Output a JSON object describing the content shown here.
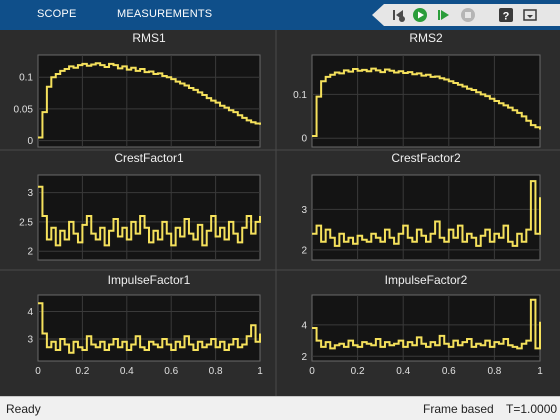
{
  "toolbar": {
    "tabs": [
      "SCOPE",
      "MEASUREMENTS"
    ],
    "icons": [
      "step-back-icon",
      "run-icon",
      "step-forward-icon",
      "stop-icon",
      "help-icon",
      "undock-icon"
    ],
    "colors": {
      "bar": "#0f4f8a",
      "run": "#2a9d3a",
      "help": "#3a3a3a"
    }
  },
  "status": {
    "ready": "Ready",
    "mode": "Frame based",
    "time": "T=1.0000"
  },
  "colors": {
    "line": "#f5e15c",
    "axes_bg": "#141414",
    "grid": "#3a3a3a",
    "text": "#e0e0e0"
  },
  "chart_data": [
    {
      "type": "line",
      "title": "RMS1",
      "xlim": [
        0,
        1
      ],
      "ylim": [
        -0.01,
        0.135
      ],
      "yticks": [
        0,
        0.05,
        0.1
      ],
      "ytick_labels": [
        "0",
        "0.05",
        "0.1"
      ],
      "xticks": [],
      "xtick_labels": [],
      "x": [
        0,
        0.02,
        0.04,
        0.06,
        0.08,
        0.1,
        0.12,
        0.14,
        0.16,
        0.18,
        0.2,
        0.22,
        0.24,
        0.26,
        0.28,
        0.3,
        0.32,
        0.34,
        0.36,
        0.38,
        0.4,
        0.42,
        0.44,
        0.46,
        0.48,
        0.5,
        0.52,
        0.54,
        0.56,
        0.58,
        0.6,
        0.62,
        0.64,
        0.66,
        0.68,
        0.7,
        0.72,
        0.74,
        0.76,
        0.78,
        0.8,
        0.82,
        0.84,
        0.86,
        0.88,
        0.9,
        0.92,
        0.94,
        0.96,
        0.98,
        1.0
      ],
      "y": [
        0.005,
        0.045,
        0.085,
        0.1,
        0.105,
        0.11,
        0.113,
        0.117,
        0.115,
        0.119,
        0.121,
        0.118,
        0.12,
        0.122,
        0.119,
        0.116,
        0.121,
        0.119,
        0.114,
        0.117,
        0.112,
        0.115,
        0.11,
        0.113,
        0.108,
        0.109,
        0.105,
        0.106,
        0.102,
        0.1,
        0.097,
        0.093,
        0.09,
        0.087,
        0.083,
        0.08,
        0.076,
        0.072,
        0.067,
        0.063,
        0.06,
        0.055,
        0.052,
        0.048,
        0.045,
        0.04,
        0.036,
        0.032,
        0.029,
        0.027,
        0.025
      ],
      "series": [
        {
          "name": ""
        }
      ]
    },
    {
      "type": "line",
      "title": "RMS2",
      "xlim": [
        0,
        1
      ],
      "ylim": [
        -0.02,
        0.19
      ],
      "yticks": [
        0,
        0.1
      ],
      "ytick_labels": [
        "0",
        "0.1"
      ],
      "xticks": [],
      "xtick_labels": [],
      "x": [
        0,
        0.02,
        0.04,
        0.06,
        0.08,
        0.1,
        0.12,
        0.14,
        0.16,
        0.18,
        0.2,
        0.22,
        0.24,
        0.26,
        0.28,
        0.3,
        0.32,
        0.34,
        0.36,
        0.38,
        0.4,
        0.42,
        0.44,
        0.46,
        0.48,
        0.5,
        0.52,
        0.54,
        0.56,
        0.58,
        0.6,
        0.62,
        0.64,
        0.66,
        0.68,
        0.7,
        0.72,
        0.74,
        0.76,
        0.78,
        0.8,
        0.82,
        0.84,
        0.86,
        0.88,
        0.9,
        0.92,
        0.94,
        0.96,
        0.98,
        1.0
      ],
      "y": [
        0.005,
        0.095,
        0.13,
        0.14,
        0.145,
        0.15,
        0.148,
        0.155,
        0.152,
        0.158,
        0.154,
        0.156,
        0.153,
        0.159,
        0.155,
        0.151,
        0.157,
        0.154,
        0.15,
        0.153,
        0.149,
        0.151,
        0.146,
        0.148,
        0.143,
        0.145,
        0.14,
        0.141,
        0.137,
        0.134,
        0.13,
        0.126,
        0.122,
        0.118,
        0.113,
        0.11,
        0.105,
        0.1,
        0.096,
        0.09,
        0.085,
        0.08,
        0.075,
        0.07,
        0.064,
        0.058,
        0.05,
        0.04,
        0.03,
        0.025,
        0.02
      ],
      "series": [
        {
          "name": ""
        }
      ]
    },
    {
      "type": "line",
      "title": "CrestFactor1",
      "xlim": [
        0,
        1
      ],
      "ylim": [
        1.85,
        3.3
      ],
      "yticks": [
        2,
        2.5,
        3
      ],
      "ytick_labels": [
        "2",
        "2.5",
        "3"
      ],
      "xticks": [],
      "xtick_labels": [],
      "x": [
        0,
        0.02,
        0.04,
        0.06,
        0.08,
        0.1,
        0.12,
        0.14,
        0.16,
        0.18,
        0.2,
        0.22,
        0.24,
        0.26,
        0.28,
        0.3,
        0.32,
        0.34,
        0.36,
        0.38,
        0.4,
        0.42,
        0.44,
        0.46,
        0.48,
        0.5,
        0.52,
        0.54,
        0.56,
        0.58,
        0.6,
        0.62,
        0.64,
        0.66,
        0.68,
        0.7,
        0.72,
        0.74,
        0.76,
        0.78,
        0.8,
        0.82,
        0.84,
        0.86,
        0.88,
        0.9,
        0.92,
        0.94,
        0.96,
        0.98,
        1.0
      ],
      "y": [
        3.1,
        2.6,
        2.2,
        2.4,
        2.1,
        2.35,
        2.2,
        2.5,
        2.3,
        2.15,
        2.45,
        2.6,
        2.3,
        2.2,
        2.4,
        2.1,
        2.35,
        2.55,
        2.25,
        2.4,
        2.2,
        2.5,
        2.3,
        2.6,
        2.4,
        2.15,
        2.35,
        2.2,
        2.5,
        2.3,
        2.1,
        2.4,
        2.25,
        2.55,
        2.3,
        2.2,
        2.45,
        2.1,
        2.35,
        2.6,
        2.25,
        2.4,
        2.2,
        2.5,
        2.3,
        2.15,
        2.4,
        2.6,
        2.3,
        2.5,
        2.6
      ],
      "series": [
        {
          "name": ""
        }
      ]
    },
    {
      "type": "line",
      "title": "CrestFactor2",
      "xlim": [
        0,
        1
      ],
      "ylim": [
        1.75,
        3.85
      ],
      "yticks": [
        2,
        3
      ],
      "ytick_labels": [
        "2",
        "3"
      ],
      "xticks": [],
      "xtick_labels": [],
      "x": [
        0,
        0.02,
        0.04,
        0.06,
        0.08,
        0.1,
        0.12,
        0.14,
        0.16,
        0.18,
        0.2,
        0.22,
        0.24,
        0.26,
        0.28,
        0.3,
        0.32,
        0.34,
        0.36,
        0.38,
        0.4,
        0.42,
        0.44,
        0.46,
        0.48,
        0.5,
        0.52,
        0.54,
        0.56,
        0.58,
        0.6,
        0.62,
        0.64,
        0.66,
        0.68,
        0.7,
        0.72,
        0.74,
        0.76,
        0.78,
        0.8,
        0.82,
        0.84,
        0.86,
        0.88,
        0.9,
        0.92,
        0.94,
        0.96,
        0.98,
        1.0
      ],
      "y": [
        2.4,
        2.6,
        2.2,
        2.5,
        2.3,
        2.1,
        2.4,
        2.2,
        2.3,
        2.15,
        2.35,
        2.25,
        2.2,
        2.4,
        2.3,
        2.2,
        2.5,
        2.3,
        2.15,
        2.4,
        2.6,
        2.3,
        2.2,
        2.5,
        2.35,
        2.2,
        2.4,
        2.7,
        2.3,
        2.2,
        2.5,
        2.3,
        2.6,
        2.2,
        2.4,
        2.3,
        2.1,
        2.35,
        2.5,
        2.2,
        2.4,
        2.3,
        2.6,
        2.2,
        2.1,
        2.4,
        2.2,
        2.5,
        3.7,
        2.4,
        3.3
      ],
      "series": [
        {
          "name": ""
        }
      ]
    },
    {
      "type": "line",
      "title": "ImpulseFactor1",
      "xlim": [
        0,
        1
      ],
      "ylim": [
        2.2,
        4.6
      ],
      "yticks": [
        3,
        4
      ],
      "ytick_labels": [
        "3",
        "4"
      ],
      "xticks": [
        0,
        0.2,
        0.4,
        0.6,
        0.8,
        1
      ],
      "xtick_labels": [
        "0",
        "0.2",
        "0.4",
        "0.6",
        "0.8",
        "1"
      ],
      "x": [
        0,
        0.02,
        0.04,
        0.06,
        0.08,
        0.1,
        0.12,
        0.14,
        0.16,
        0.18,
        0.2,
        0.22,
        0.24,
        0.26,
        0.28,
        0.3,
        0.32,
        0.34,
        0.36,
        0.38,
        0.4,
        0.42,
        0.44,
        0.46,
        0.48,
        0.5,
        0.52,
        0.54,
        0.56,
        0.58,
        0.6,
        0.62,
        0.64,
        0.66,
        0.68,
        0.7,
        0.72,
        0.74,
        0.76,
        0.78,
        0.8,
        0.82,
        0.84,
        0.86,
        0.88,
        0.9,
        0.92,
        0.94,
        0.96,
        0.98,
        1.0
      ],
      "y": [
        4.3,
        3.2,
        2.7,
        2.9,
        2.6,
        3.0,
        2.8,
        2.5,
        2.9,
        2.7,
        2.6,
        3.1,
        2.8,
        2.7,
        2.9,
        2.6,
        2.8,
        3.0,
        2.7,
        2.9,
        2.6,
        2.8,
        3.1,
        2.7,
        2.6,
        2.9,
        2.8,
        2.7,
        3.0,
        2.8,
        2.6,
        2.9,
        2.7,
        3.1,
        2.8,
        2.6,
        2.9,
        2.7,
        2.8,
        3.0,
        2.7,
        2.9,
        2.6,
        2.8,
        3.0,
        2.7,
        2.8,
        3.1,
        3.5,
        2.9,
        3.2
      ],
      "series": [
        {
          "name": ""
        }
      ]
    },
    {
      "type": "line",
      "title": "ImpulseFactor2",
      "xlim": [
        0,
        1
      ],
      "ylim": [
        1.7,
        5.9
      ],
      "yticks": [
        2,
        4
      ],
      "ytick_labels": [
        "2",
        "4"
      ],
      "xticks": [
        0,
        0.2,
        0.4,
        0.6,
        0.8,
        1
      ],
      "xtick_labels": [
        "0",
        "0.2",
        "0.4",
        "0.6",
        "0.8",
        "1"
      ],
      "x": [
        0,
        0.02,
        0.04,
        0.06,
        0.08,
        0.1,
        0.12,
        0.14,
        0.16,
        0.18,
        0.2,
        0.22,
        0.24,
        0.26,
        0.28,
        0.3,
        0.32,
        0.34,
        0.36,
        0.38,
        0.4,
        0.42,
        0.44,
        0.46,
        0.48,
        0.5,
        0.52,
        0.54,
        0.56,
        0.58,
        0.6,
        0.62,
        0.64,
        0.66,
        0.68,
        0.7,
        0.72,
        0.74,
        0.76,
        0.78,
        0.8,
        0.82,
        0.84,
        0.86,
        0.88,
        0.9,
        0.92,
        0.94,
        0.96,
        0.98,
        1.0
      ],
      "y": [
        3.8,
        3.0,
        2.6,
        2.9,
        2.5,
        2.7,
        2.8,
        2.6,
        3.0,
        2.7,
        2.6,
        2.9,
        2.8,
        2.7,
        3.1,
        2.6,
        2.9,
        2.7,
        2.8,
        3.0,
        2.6,
        2.9,
        2.7,
        3.2,
        2.8,
        2.6,
        2.9,
        2.7,
        3.3,
        2.8,
        2.6,
        3.0,
        2.7,
        2.9,
        3.1,
        2.6,
        2.8,
        2.7,
        3.0,
        2.6,
        2.9,
        2.8,
        3.1,
        2.7,
        2.6,
        2.5,
        2.8,
        3.0,
        5.6,
        2.5,
        4.2
      ],
      "series": [
        {
          "name": ""
        }
      ]
    }
  ]
}
